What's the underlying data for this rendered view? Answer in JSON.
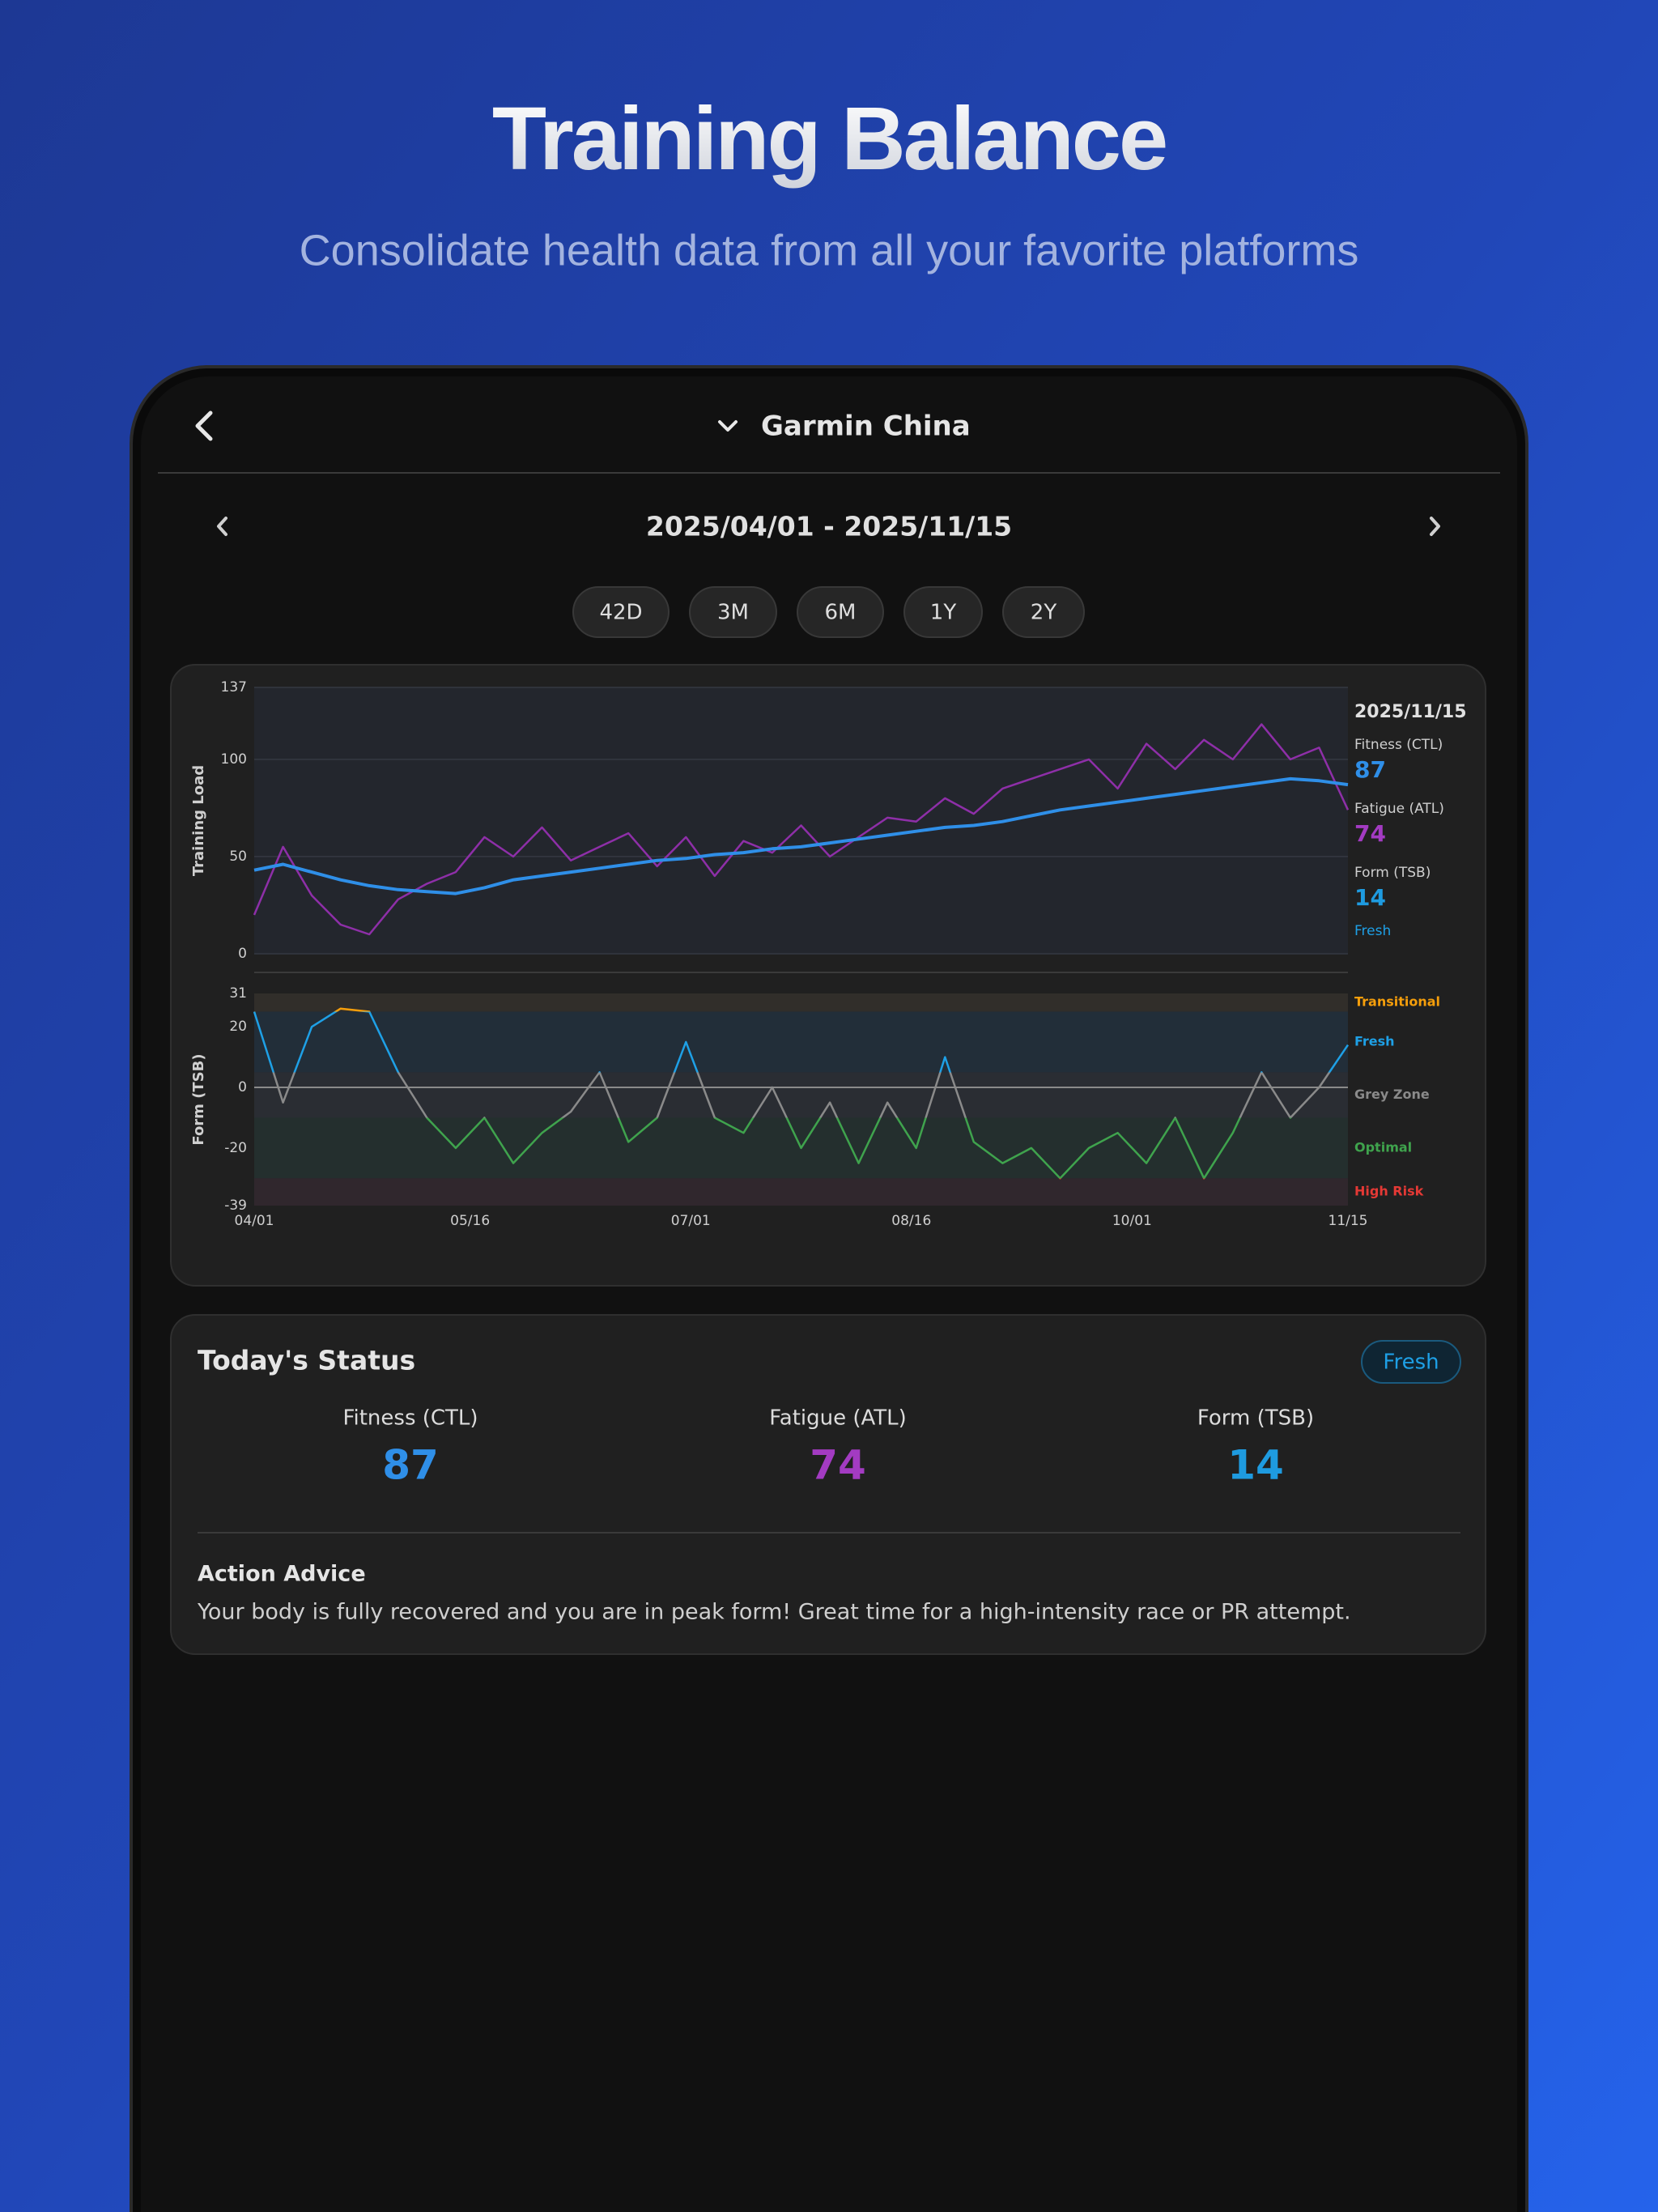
{
  "header": {
    "title": "Training Balance",
    "subtitle": "Consolidate health data from all your favorite platforms"
  },
  "app": {
    "device_title": "Garmin China",
    "date_range": "2025/04/01 - 2025/11/15",
    "ranges": [
      "42D",
      "3M",
      "6M",
      "1Y",
      "2Y"
    ],
    "panel_date": "2025/11/15",
    "status": {
      "title": "Today's Status",
      "state": "Fresh",
      "advice_title": "Action Advice",
      "advice": "Your body is fully recovered and you are in peak form! Great time for a high-intensity race or PR attempt."
    }
  },
  "chart_data": [
    {
      "type": "line",
      "y_label": "Training Load",
      "ylim": [
        0,
        137
      ],
      "yticks": [
        0,
        50,
        100,
        137
      ],
      "grid": true,
      "xlim": [
        0,
        228
      ],
      "x": [
        0,
        6,
        12,
        18,
        24,
        30,
        36,
        42,
        48,
        54,
        60,
        66,
        72,
        78,
        84,
        90,
        96,
        102,
        108,
        114,
        120,
        126,
        132,
        138,
        144,
        150,
        156,
        162,
        168,
        174,
        180,
        186,
        192,
        198,
        204,
        210,
        216,
        222,
        228
      ],
      "series": [
        {
          "name": "Fitness (CTL)",
          "color": "#2f8fe8",
          "values": [
            43,
            46,
            42,
            38,
            35,
            33,
            32,
            31,
            34,
            38,
            40,
            42,
            44,
            46,
            48,
            49,
            51,
            52,
            54,
            55,
            57,
            59,
            61,
            63,
            65,
            66,
            68,
            71,
            74,
            76,
            78,
            80,
            82,
            84,
            86,
            88,
            90,
            89,
            87
          ]
        },
        {
          "name": "Fatigue (ATL)",
          "color": "#8e2fa8",
          "values": [
            20,
            55,
            30,
            15,
            10,
            28,
            36,
            42,
            60,
            50,
            65,
            48,
            55,
            62,
            45,
            60,
            40,
            58,
            52,
            66,
            50,
            60,
            70,
            68,
            80,
            72,
            85,
            90,
            95,
            100,
            85,
            108,
            95,
            110,
            100,
            118,
            100,
            106,
            74
          ]
        }
      ]
    },
    {
      "type": "line",
      "y_label": "Form (TSB)",
      "ylim": [
        -39,
        31
      ],
      "yticks": [
        -39,
        -20,
        0,
        20,
        31
      ],
      "grid": false,
      "xlim": [
        0,
        228
      ],
      "x": [
        0,
        6,
        12,
        18,
        24,
        30,
        36,
        42,
        48,
        54,
        60,
        66,
        72,
        78,
        84,
        90,
        96,
        102,
        108,
        114,
        120,
        126,
        132,
        138,
        144,
        150,
        156,
        162,
        168,
        174,
        180,
        186,
        192,
        198,
        204,
        210,
        216,
        222,
        228
      ],
      "xticks": [
        {
          "value": 0,
          "label": "04/01"
        },
        {
          "value": 45,
          "label": "05/16"
        },
        {
          "value": 91,
          "label": "07/01"
        },
        {
          "value": 137,
          "label": "08/16"
        },
        {
          "value": 183,
          "label": "10/01"
        },
        {
          "value": 228,
          "label": "11/15"
        }
      ],
      "zones": [
        {
          "name": "Transitional",
          "min": 25,
          "max": 31,
          "color": "#f59e0b"
        },
        {
          "name": "Fresh",
          "min": 5,
          "max": 25,
          "color": "#1ea0e6"
        },
        {
          "name": "Grey Zone",
          "min": -10,
          "max": 5,
          "color": "#8a8a8a"
        },
        {
          "name": "Optimal",
          "min": -30,
          "max": -10,
          "color": "#3fa34d"
        },
        {
          "name": "High Risk",
          "min": -39,
          "max": -30,
          "color": "#e53935"
        }
      ],
      "series": [
        {
          "name": "Form (TSB)",
          "color": "#1e9be0",
          "values": [
            25,
            -5,
            20,
            26,
            25,
            5,
            -10,
            -20,
            -10,
            -25,
            -15,
            -8,
            5,
            -18,
            -10,
            15,
            -10,
            -15,
            0,
            -20,
            -5,
            -25,
            -5,
            -20,
            10,
            -18,
            -25,
            -20,
            -30,
            -20,
            -15,
            -25,
            -10,
            -30,
            -15,
            5,
            -10,
            0,
            14
          ]
        }
      ]
    }
  ]
}
